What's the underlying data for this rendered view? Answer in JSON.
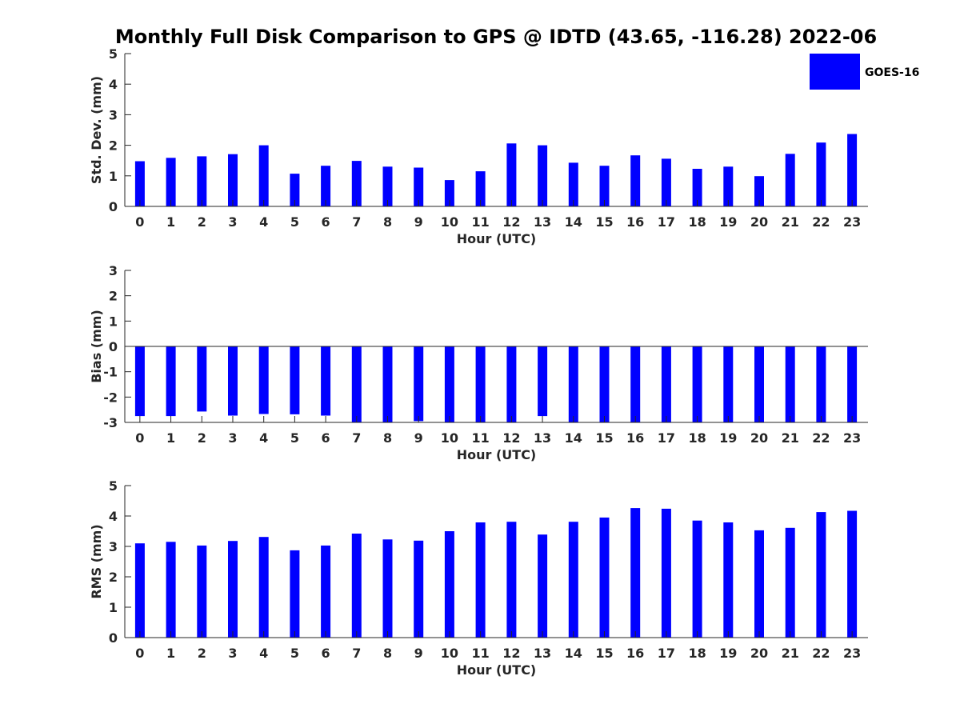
{
  "title": "Monthly Full Disk Comparison to GPS @ IDTD (43.65, -116.28) 2022-06",
  "bar_color": "#0000ff",
  "legend": {
    "label": "GOES-16",
    "color": "#0000ff"
  },
  "chart_data": [
    {
      "type": "bar",
      "xlabel": "Hour (UTC)",
      "ylabel": "Std. Dev. (mm)",
      "ylim": [
        0,
        5
      ],
      "yticks": [
        0,
        1,
        2,
        3,
        4,
        5
      ],
      "categories": [
        "0",
        "1",
        "2",
        "3",
        "4",
        "5",
        "6",
        "7",
        "8",
        "9",
        "10",
        "11",
        "12",
        "13",
        "14",
        "15",
        "16",
        "17",
        "18",
        "19",
        "20",
        "21",
        "22",
        "23"
      ],
      "series": [
        {
          "name": "GOES-16",
          "values": [
            1.48,
            1.59,
            1.64,
            1.71,
            2.0,
            1.07,
            1.33,
            1.49,
            1.3,
            1.27,
            0.86,
            1.15,
            2.06,
            2.0,
            1.43,
            1.33,
            1.67,
            1.56,
            1.23,
            1.3,
            0.99,
            1.72,
            2.09,
            2.37
          ]
        }
      ]
    },
    {
      "type": "bar",
      "xlabel": "Hour (UTC)",
      "ylabel": "Bias (mm)",
      "ylim": [
        -3,
        3
      ],
      "yticks": [
        -3,
        -2,
        -1,
        0,
        1,
        2,
        3
      ],
      "categories": [
        "0",
        "1",
        "2",
        "3",
        "4",
        "5",
        "6",
        "7",
        "8",
        "9",
        "10",
        "11",
        "12",
        "13",
        "14",
        "15",
        "16",
        "17",
        "18",
        "19",
        "20",
        "21",
        "22",
        "23"
      ],
      "series": [
        {
          "name": "GOES-16",
          "values": [
            -2.75,
            -2.75,
            -2.57,
            -2.73,
            -2.67,
            -2.68,
            -2.73,
            -3.0,
            -3.0,
            -2.95,
            -3.0,
            -3.0,
            -3.0,
            -2.75,
            -3.0,
            -3.0,
            -3.0,
            -3.0,
            -3.0,
            -3.0,
            -3.0,
            -3.0,
            -3.0,
            -3.0
          ]
        }
      ]
    },
    {
      "type": "bar",
      "xlabel": "Hour (UTC)",
      "ylabel": "RMS (mm)",
      "ylim": [
        0,
        5
      ],
      "yticks": [
        0,
        1,
        2,
        3,
        4,
        5
      ],
      "categories": [
        "0",
        "1",
        "2",
        "3",
        "4",
        "5",
        "6",
        "7",
        "8",
        "9",
        "10",
        "11",
        "12",
        "13",
        "14",
        "15",
        "16",
        "17",
        "18",
        "19",
        "20",
        "21",
        "22",
        "23"
      ],
      "series": [
        {
          "name": "GOES-16",
          "values": [
            3.1,
            3.15,
            3.03,
            3.18,
            3.31,
            2.87,
            3.03,
            3.42,
            3.23,
            3.19,
            3.5,
            3.79,
            3.81,
            3.39,
            3.81,
            3.95,
            4.26,
            4.24,
            3.85,
            3.79,
            3.53,
            3.61,
            4.13,
            4.17
          ]
        }
      ]
    }
  ]
}
